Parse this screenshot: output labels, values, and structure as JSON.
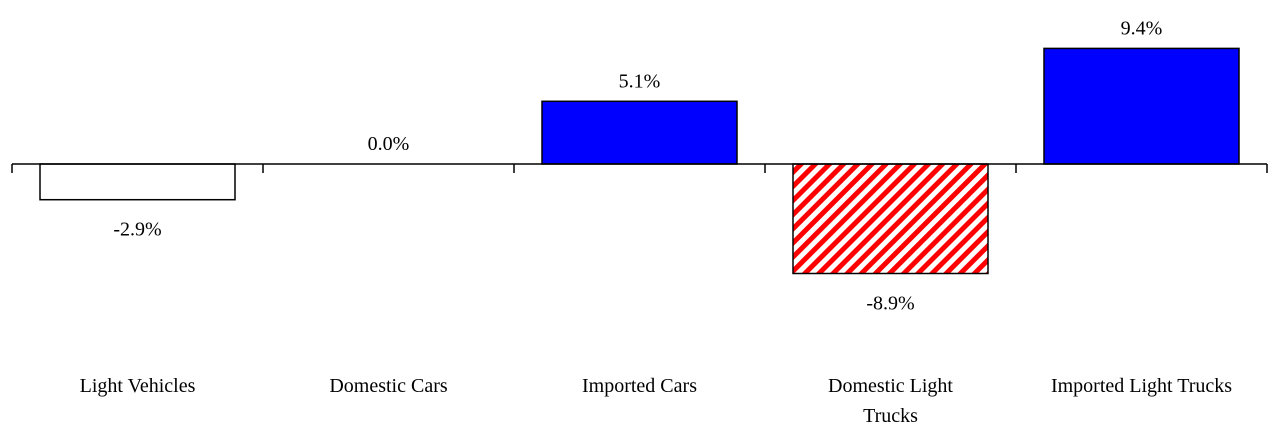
{
  "chart_data": {
    "type": "bar",
    "categories": [
      [
        "Light Vehicles"
      ],
      [
        "Domestic Cars"
      ],
      [
        "Imported Cars"
      ],
      [
        "Domestic Light",
        "Trucks"
      ],
      [
        "Imported Light Trucks"
      ]
    ],
    "values": [
      -2.9,
      0.0,
      5.1,
      -8.9,
      9.4
    ],
    "data_labels": [
      "-2.9%",
      "0.0%",
      "5.1%",
      "-8.9%",
      "9.4%"
    ],
    "bar_styles": [
      "outline",
      "none",
      "solid",
      "hatched",
      "solid"
    ],
    "colors": {
      "solid": "#0000ff",
      "hatch": "#ff0000",
      "outline": "#000000",
      "background": "#ffffff"
    },
    "title": "",
    "xlabel": "",
    "ylabel": "",
    "ylim": [
      -14,
      14
    ],
    "grid": false,
    "legend": "none"
  }
}
